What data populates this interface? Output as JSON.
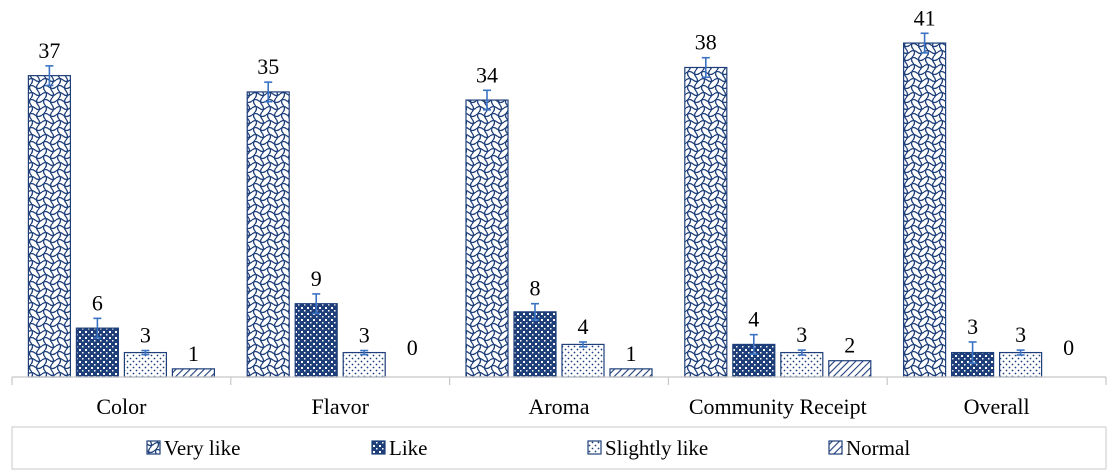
{
  "chart_data": {
    "type": "bar",
    "categories": [
      "Color",
      "Flavor",
      "Aroma",
      "Community Receipt",
      "Overall"
    ],
    "series": [
      {
        "name": "Very like",
        "values": [
          37,
          35,
          34,
          38,
          41
        ],
        "pattern": "wave"
      },
      {
        "name": "Like",
        "values": [
          6,
          9,
          8,
          4,
          3
        ],
        "pattern": "dense-dots"
      },
      {
        "name": "Slightly like",
        "values": [
          3,
          3,
          4,
          3,
          3
        ],
        "pattern": "sparse-dots"
      },
      {
        "name": "Normal",
        "values": [
          1,
          0,
          1,
          2,
          0
        ],
        "pattern": "diagonal"
      }
    ],
    "error_bars": [
      [
        1.2,
        1.2,
        1.2,
        1.2,
        1.2
      ],
      [
        1.2,
        1.2,
        1.0,
        1.2,
        1.3
      ],
      [
        0.25,
        0.25,
        0.3,
        0.3,
        0.3
      ],
      [
        0,
        0,
        0,
        0,
        0
      ]
    ],
    "data_labels_shown": [
      [
        true,
        true,
        true,
        true,
        true
      ],
      [
        true,
        true,
        true,
        true,
        true
      ],
      [
        true,
        true,
        true,
        true,
        true
      ],
      [
        true,
        true,
        true,
        true,
        true
      ]
    ],
    "ylim": [
      0,
      44
    ],
    "grid": false,
    "legend_position": "bottom",
    "colors": {
      "bar_stroke": "#1f3f7a",
      "error_bar": "#3b73c4",
      "axis": "#c8c8c8"
    }
  }
}
